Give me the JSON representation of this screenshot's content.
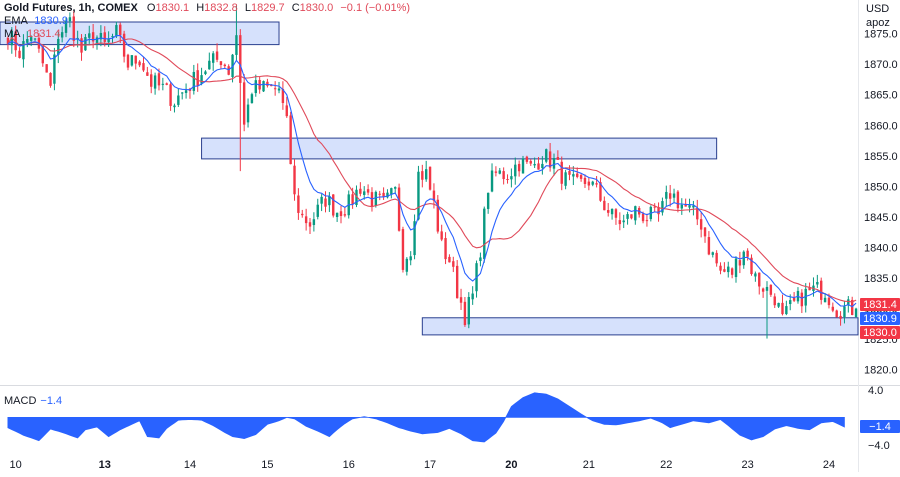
{
  "legend": {
    "symbol": "Gold Futures, 1h, COMEX",
    "o_label": "O",
    "o": "1830.1",
    "h_label": "H",
    "h": "1832.8",
    "l_label": "L",
    "l": "1829.7",
    "c_label": "C",
    "c": "1830.0",
    "change": "−0.1 (−0.01%)",
    "ema_label": "EMA",
    "ema_value": "1830.9",
    "ma_label": "MA",
    "ma_value": "1831.4"
  },
  "price_axis": {
    "currency_line1": "USD",
    "currency_line2": "apoz"
  },
  "macd": {
    "label": "MACD",
    "value": "−1.4",
    "badge": "−1.4",
    "ticks": [
      "4.0",
      "−4.0"
    ],
    "tick_values": [
      4.0,
      -4.0
    ],
    "ylim": [
      -5.5,
      4.6
    ],
    "color": "#2962ff",
    "profile": [
      [
        0,
        -1.5
      ],
      [
        4,
        -2.6
      ],
      [
        8,
        -3.4
      ],
      [
        11,
        -1.7
      ],
      [
        14,
        -2.2
      ],
      [
        18,
        -3.0
      ],
      [
        20,
        -1.8
      ],
      [
        23,
        -1.4
      ],
      [
        26,
        -2.8
      ],
      [
        29,
        -1.8
      ],
      [
        32,
        -1.0
      ],
      [
        34,
        -0.5
      ],
      [
        36,
        -2.8
      ],
      [
        39,
        -3.0
      ],
      [
        41,
        -1.6
      ],
      [
        44,
        -0.4
      ],
      [
        47,
        -0.3
      ],
      [
        50,
        -0.4
      ],
      [
        53,
        -1.2
      ],
      [
        56,
        -2.2
      ],
      [
        58,
        -2.8
      ],
      [
        61,
        -3.1
      ],
      [
        64,
        -2.5
      ],
      [
        67,
        -1.0
      ],
      [
        70,
        -0.5
      ],
      [
        72,
        0.0
      ],
      [
        74,
        -0.2
      ],
      [
        77,
        -1.3
      ],
      [
        80,
        -2.0
      ],
      [
        83,
        -2.8
      ],
      [
        85,
        -1.8
      ],
      [
        87,
        -0.9
      ],
      [
        89,
        -0.2
      ],
      [
        92,
        0.1
      ],
      [
        95,
        -0.2
      ],
      [
        98,
        -0.8
      ],
      [
        101,
        -1.5
      ],
      [
        104,
        -2.0
      ],
      [
        107,
        -2.4
      ],
      [
        111,
        -2.2
      ],
      [
        114,
        -1.6
      ],
      [
        117,
        -2.4
      ],
      [
        120,
        -3.4
      ],
      [
        123,
        -3.6
      ],
      [
        126,
        -2.3
      ],
      [
        128,
        -0.6
      ],
      [
        130,
        1.6
      ],
      [
        133,
        2.9
      ],
      [
        136,
        3.6
      ],
      [
        139,
        3.4
      ],
      [
        142,
        2.7
      ],
      [
        145,
        1.6
      ],
      [
        148,
        0.5
      ],
      [
        151,
        -0.5
      ],
      [
        154,
        -1.0
      ],
      [
        157,
        -1.1
      ],
      [
        160,
        -0.8
      ],
      [
        163,
        -0.5
      ],
      [
        166,
        -0.1
      ],
      [
        169,
        -0.8
      ],
      [
        171,
        -1.5
      ],
      [
        174,
        -1.0
      ],
      [
        177,
        -0.5
      ],
      [
        181,
        -0.8
      ],
      [
        184,
        -0.3
      ],
      [
        186,
        -1.2
      ],
      [
        189,
        -2.6
      ],
      [
        192,
        -3.3
      ],
      [
        195,
        -2.8
      ],
      [
        198,
        -1.7
      ],
      [
        201,
        -1.2
      ],
      [
        204,
        -1.6
      ],
      [
        207,
        -1.8
      ],
      [
        210,
        -0.8
      ],
      [
        213,
        -0.6
      ],
      [
        216,
        -1.4
      ]
    ]
  },
  "chart_data": {
    "type": "candlestick",
    "title": "Gold Futures, 1h, COMEX",
    "ylabel": "USD apoz",
    "ylim": [
      1817.5,
      1880.5
    ],
    "yticks": [
      1820.0,
      1825.0,
      1830.0,
      1835.0,
      1840.0,
      1845.0,
      1850.0,
      1855.0,
      1860.0,
      1865.0,
      1870.0,
      1875.0
    ],
    "yticks_text": [
      "1820.0",
      "1825.0",
      "1830.0",
      "1835.0",
      "1840.0",
      "1845.0",
      "1850.0",
      "1855.0",
      "1860.0",
      "1865.0",
      "1870.0",
      "1875.0"
    ],
    "bar_count": 220,
    "date_ticks": [
      {
        "label": "10",
        "bar": 2
      },
      {
        "label": "13",
        "bar": 25
      },
      {
        "label": "14",
        "bar": 47
      },
      {
        "label": "15",
        "bar": 67
      },
      {
        "label": "16",
        "bar": 88
      },
      {
        "label": "17",
        "bar": 109
      },
      {
        "label": "20",
        "bar": 130
      },
      {
        "label": "21",
        "bar": 150
      },
      {
        "label": "22",
        "bar": 170
      },
      {
        "label": "23",
        "bar": 191
      },
      {
        "label": "24",
        "bar": 212
      }
    ],
    "price_path": [
      [
        0,
        1875
      ],
      [
        3,
        1872
      ],
      [
        6,
        1875
      ],
      [
        9,
        1870
      ],
      [
        11,
        1866
      ],
      [
        13,
        1875
      ],
      [
        16,
        1877
      ],
      [
        19,
        1872
      ],
      [
        22,
        1875
      ],
      [
        25,
        1873
      ],
      [
        28,
        1875
      ],
      [
        31,
        1870
      ],
      [
        34,
        1871
      ],
      [
        37,
        1867
      ],
      [
        40,
        1866
      ],
      [
        43,
        1864
      ],
      [
        46,
        1866
      ],
      [
        49,
        1868
      ],
      [
        52,
        1870
      ],
      [
        55,
        1871
      ],
      [
        57,
        1869
      ],
      [
        59,
        1875
      ],
      [
        61,
        1860
      ],
      [
        63,
        1866
      ],
      [
        65,
        1866
      ],
      [
        68,
        1866
      ],
      [
        70,
        1866
      ],
      [
        72,
        1860
      ],
      [
        74,
        1848
      ],
      [
        76,
        1845
      ],
      [
        78,
        1844
      ],
      [
        80,
        1846
      ],
      [
        82,
        1848
      ],
      [
        85,
        1846
      ],
      [
        88,
        1847
      ],
      [
        91,
        1850
      ],
      [
        94,
        1848
      ],
      [
        97,
        1847
      ],
      [
        100,
        1849
      ],
      [
        102,
        1838
      ],
      [
        104,
        1840
      ],
      [
        106,
        1852
      ],
      [
        108,
        1852
      ],
      [
        110,
        1847
      ],
      [
        112,
        1840
      ],
      [
        114,
        1838
      ],
      [
        116,
        1833
      ],
      [
        118,
        1829
      ],
      [
        120,
        1832
      ],
      [
        122,
        1840
      ],
      [
        124,
        1850
      ],
      [
        126,
        1852
      ],
      [
        129,
        1852
      ],
      [
        132,
        1854
      ],
      [
        135,
        1853
      ],
      [
        138,
        1855
      ],
      [
        141,
        1854
      ],
      [
        144,
        1851
      ],
      [
        147,
        1850
      ],
      [
        150,
        1851
      ],
      [
        153,
        1848
      ],
      [
        156,
        1845
      ],
      [
        159,
        1844
      ],
      [
        162,
        1846
      ],
      [
        165,
        1845
      ],
      [
        168,
        1845
      ],
      [
        171,
        1849
      ],
      [
        174,
        1847
      ],
      [
        176,
        1846
      ],
      [
        179,
        1844
      ],
      [
        181,
        1840
      ],
      [
        184,
        1836
      ],
      [
        187,
        1836
      ],
      [
        190,
        1840
      ],
      [
        193,
        1835
      ],
      [
        196,
        1833
      ],
      [
        198,
        1832
      ],
      [
        200,
        1828
      ],
      [
        202,
        1830
      ],
      [
        205,
        1832
      ],
      [
        208,
        1833
      ],
      [
        211,
        1833
      ],
      [
        214,
        1830
      ],
      [
        216,
        1830
      ]
    ],
    "last_close": 1830.0,
    "ema_value": 1830.9,
    "ma_value": 1831.4,
    "zones": [
      {
        "from_bar": -2,
        "to_bar": 70,
        "low": 1873.2,
        "high": 1876.9
      },
      {
        "from_bar": 50,
        "to_bar": 183,
        "low": 1854.5,
        "high": 1857.9
      },
      {
        "from_bar": 107,
        "to_bar": 220,
        "low": 1825.7,
        "high": 1828.5
      }
    ],
    "badges": [
      {
        "text": "1831.4",
        "value": 1831.4,
        "color": "#f23645"
      },
      {
        "text": "1830.9",
        "value": 1830.9,
        "color": "#2962ff"
      },
      {
        "text": "1830.0",
        "value": 1830.0,
        "color": "#f23645"
      }
    ],
    "colors": {
      "up": "#089981",
      "down": "#f23645",
      "ema": "#2962ff",
      "ma": "#e04a5a",
      "zone_fill": "#cfdcfb",
      "zone_stroke": "#2a3f8f"
    }
  }
}
